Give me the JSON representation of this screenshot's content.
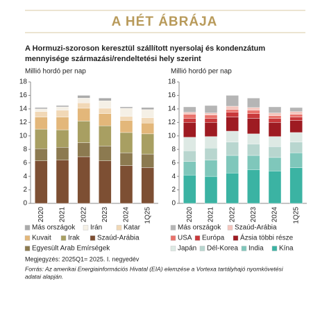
{
  "header": "A HÉT ÁBRÁJA",
  "title": [
    "A Hormuzi-szoroson keresztül szállított nyersolaj és kondenzátum",
    "mennyisége származási/rendeltetési hely szerint"
  ],
  "note": "Megjegyzés: 2025Q1= 2025. I. negyedév",
  "source": [
    "Forrás: Az amerikai Energiainformációs Hivatal (EIA) elemzése a Vortexa tartályhajó nyomkövetési",
    "adatai alapján."
  ],
  "chart_data": [
    {
      "type": "bar",
      "stacked": true,
      "ylabel": "Millió hordó per nap",
      "categories": [
        "2020",
        "2021",
        "2022",
        "2023",
        "2024",
        "1Q25"
      ],
      "ylim": [
        0,
        18
      ],
      "yticks": [
        0,
        2,
        4,
        6,
        8,
        10,
        12,
        14,
        16,
        18
      ],
      "series": [
        {
          "name": "Szaúd-Arábia",
          "color": "#7d4f33",
          "values": [
            6.3,
            6.4,
            6.9,
            6.3,
            5.6,
            5.3
          ]
        },
        {
          "name": "Egyesült Arab Emírségek",
          "color": "#8c7a50",
          "values": [
            1.8,
            1.9,
            2.1,
            2.2,
            1.9,
            2.0
          ]
        },
        {
          "name": "Irak",
          "color": "#a89f62",
          "values": [
            2.9,
            2.6,
            3.2,
            3.0,
            3.0,
            3.0
          ]
        },
        {
          "name": "Kuvait",
          "color": "#e3b77a",
          "values": [
            1.8,
            1.9,
            1.9,
            1.8,
            1.8,
            1.6
          ]
        },
        {
          "name": "Katar",
          "color": "#f1d8b6",
          "values": [
            0.8,
            1.0,
            0.8,
            0.8,
            0.6,
            0.8
          ]
        },
        {
          "name": "Irán",
          "color": "#f5f0e6",
          "values": [
            0.4,
            0.5,
            0.7,
            1.1,
            1.2,
            1.2
          ]
        },
        {
          "name": "Más országok",
          "color": "#ababab",
          "values": [
            0.2,
            0.2,
            0.4,
            0.4,
            0.2,
            0.3
          ]
        }
      ]
    },
    {
      "type": "bar",
      "stacked": true,
      "ylabel": "Millió hordó per nap",
      "categories": [
        "2020",
        "2021",
        "2022",
        "2023",
        "2024",
        "1Q25"
      ],
      "ylim": [
        0,
        18
      ],
      "yticks": [
        0,
        2,
        4,
        6,
        8,
        10,
        12,
        14,
        16,
        18
      ],
      "series": [
        {
          "name": "Kína",
          "color": "#3bb3a3",
          "values": [
            4.2,
            4.0,
            4.5,
            5.0,
            4.8,
            5.3
          ]
        },
        {
          "name": "India",
          "color": "#7fc7bb",
          "values": [
            2.0,
            2.4,
            2.6,
            2.1,
            2.0,
            2.2
          ]
        },
        {
          "name": "Dél-Korea",
          "color": "#b8d6cf",
          "values": [
            1.6,
            1.8,
            2.0,
            1.7,
            1.6,
            1.6
          ]
        },
        {
          "name": "Japán",
          "color": "#dde9e4",
          "values": [
            2.0,
            1.7,
            1.6,
            1.5,
            1.5,
            1.4
          ]
        },
        {
          "name": "Ázsia többi része",
          "color": "#9e1b22",
          "values": [
            2.2,
            2.1,
            2.1,
            2.3,
            2.1,
            1.8
          ]
        },
        {
          "name": "Európa",
          "color": "#c9393b",
          "values": [
            0.6,
            0.6,
            0.7,
            0.7,
            0.6,
            0.5
          ]
        },
        {
          "name": "USA",
          "color": "#e9736c",
          "values": [
            0.6,
            0.5,
            0.4,
            0.5,
            0.4,
            0.4
          ]
        },
        {
          "name": "Szaúd-Arábia",
          "color": "#f5c5bd",
          "values": [
            0.3,
            0.3,
            0.5,
            0.4,
            0.4,
            0.4
          ]
        },
        {
          "name": "Más országok",
          "color": "#b5b5b5",
          "values": [
            0.8,
            1.1,
            1.6,
            1.4,
            0.9,
            0.6
          ]
        }
      ]
    }
  ]
}
